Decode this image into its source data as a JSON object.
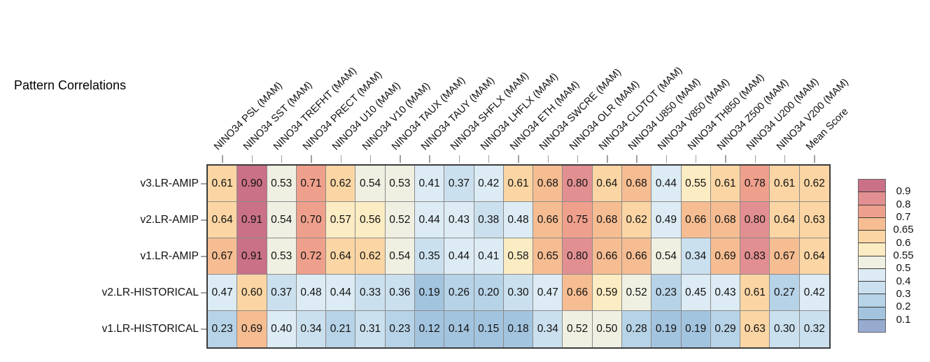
{
  "title": "Pattern Correlations",
  "chart_data": {
    "type": "heatmap",
    "title": "Pattern Correlations",
    "columns": [
      "NINO34 PSL (MAM)",
      "NINO34 SST (MAM)",
      "NINO34 TREFHT (MAM)",
      "NINO34 PRECT (MAM)",
      "NINO34 U10 (MAM)",
      "NINO34 V10 (MAM)",
      "NINO34 TAUX (MAM)",
      "NINO34 TAUY (MAM)",
      "NINO34 SHFLX (MAM)",
      "NINO34 LHFLX (MAM)",
      "NINO34 ETH (MAM)",
      "NINO34 SWCRE (MAM)",
      "NINO34 OLR (MAM)",
      "NINO34 CLDTOT (MAM)",
      "NINO34 U850 (MAM)",
      "NINO34 V850 (MAM)",
      "NINO34 TH850 (MAM)",
      "NINO34 Z500 (MAM)",
      "NINO34 U200 (MAM)",
      "NINO34 V200 (MAM)",
      "Mean Score"
    ],
    "rows": [
      "v3.LR-AMIP",
      "v2.LR-AMIP",
      "v1.LR-AMIP",
      "v2.LR-HISTORICAL",
      "v1.LR-HISTORICAL"
    ],
    "values": [
      [
        "0.61",
        "0.90",
        "0.53",
        "0.71",
        "0.62",
        "0.54",
        "0.53",
        "0.41",
        "0.37",
        "0.42",
        "0.61",
        "0.68",
        "0.80",
        "0.64",
        "0.68",
        "0.44",
        "0.55",
        "0.61",
        "0.78",
        "0.61",
        "0.62"
      ],
      [
        "0.64",
        "0.91",
        "0.54",
        "0.70",
        "0.57",
        "0.56",
        "0.52",
        "0.44",
        "0.43",
        "0.38",
        "0.48",
        "0.66",
        "0.75",
        "0.68",
        "0.62",
        "0.49",
        "0.66",
        "0.68",
        "0.80",
        "0.64",
        "0.63"
      ],
      [
        "0.67",
        "0.91",
        "0.53",
        "0.72",
        "0.64",
        "0.62",
        "0.54",
        "0.35",
        "0.44",
        "0.41",
        "0.58",
        "0.65",
        "0.80",
        "0.66",
        "0.66",
        "0.54",
        "0.34",
        "0.69",
        "0.83",
        "0.67",
        "0.64"
      ],
      [
        "0.47",
        "0.60",
        "0.37",
        "0.48",
        "0.44",
        "0.33",
        "0.36",
        "0.19",
        "0.26",
        "0.20",
        "0.30",
        "0.47",
        "0.66",
        "0.59",
        "0.52",
        "0.23",
        "0.45",
        "0.43",
        "0.61",
        "0.27",
        "0.42"
      ],
      [
        "0.23",
        "0.69",
        "0.40",
        "0.34",
        "0.21",
        "0.31",
        "0.23",
        "0.12",
        "0.14",
        "0.15",
        "0.18",
        "0.34",
        "0.52",
        "0.50",
        "0.28",
        "0.19",
        "0.19",
        "0.29",
        "0.63",
        "0.30",
        "0.32"
      ]
    ],
    "legend": {
      "position": "right",
      "tick_labels": [
        "0.9",
        "0.8",
        "0.7",
        "0.65",
        "0.6",
        "0.55",
        "0.5",
        "0.4",
        "0.3",
        "0.2",
        "0.1"
      ],
      "bin_edges_ascending": [
        0.1,
        0.2,
        0.3,
        0.4,
        0.5,
        0.55,
        0.6,
        0.65,
        0.7,
        0.8,
        0.9
      ],
      "colors_ascending": [
        "#97abd1",
        "#a3c4df",
        "#b7d3e7",
        "#cbe0ee",
        "#dcebf4",
        "#eff0e2",
        "#fcecc3",
        "#fbd6a4",
        "#f6bd92",
        "#efa08c",
        "#e28f91",
        "#ca7187"
      ]
    }
  },
  "colors": {
    "background": "#ffffff",
    "grid_border": "#3c3c3c",
    "cell_line": "#8a8a8a",
    "tick": "#a0a0a0",
    "text": "#111111"
  }
}
